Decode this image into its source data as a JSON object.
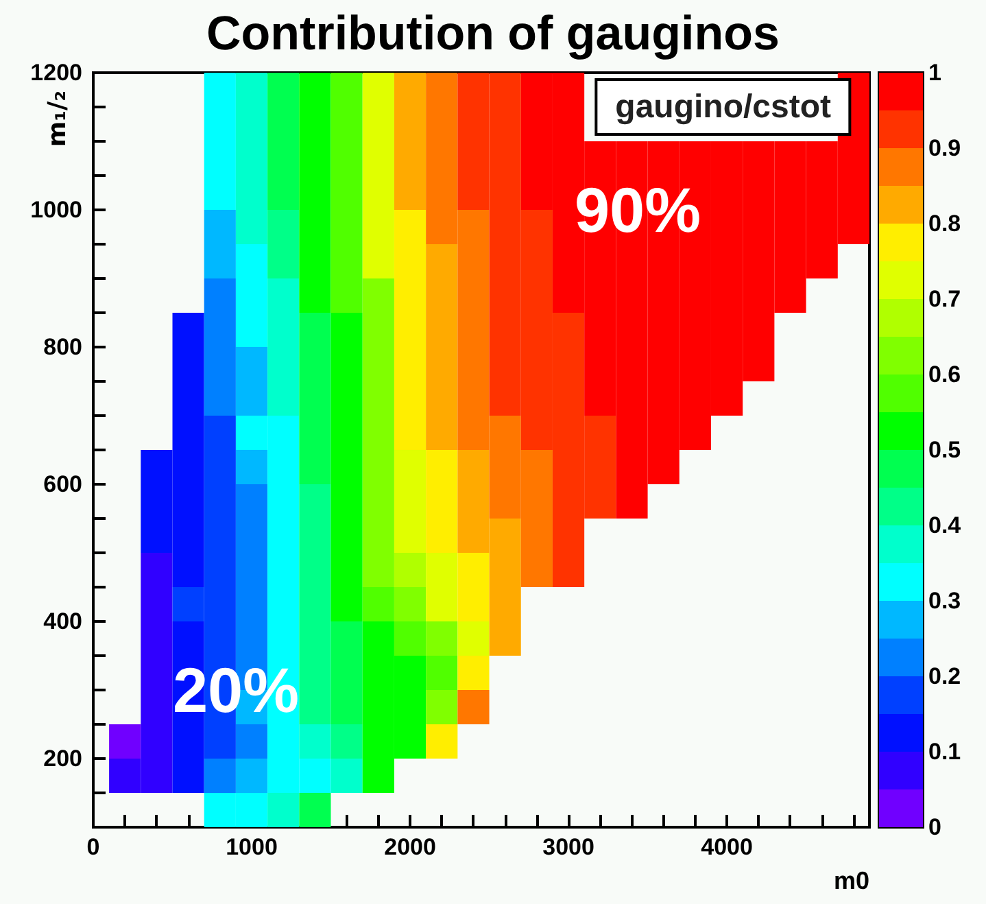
{
  "chart_data": {
    "type": "heatmap",
    "title": "Contribution of gauginos",
    "xlabel": "m0",
    "ylabel": "m₁/₂",
    "annotations": [
      "gaugino/cstot",
      "90%",
      "20%"
    ],
    "x": [
      200,
      400,
      600,
      800,
      1000,
      1200,
      1400,
      1600,
      1800,
      2000,
      2200,
      2400,
      2600,
      2800,
      3000,
      3200,
      3400,
      3600,
      3800,
      4000,
      4200,
      4400,
      4600,
      4800
    ],
    "xlim": [
      0,
      4900
    ],
    "xticks": [
      0,
      {
        "value": 200,
        "label": null
      },
      {
        "value": 400,
        "label": null
      },
      {
        "value": 600,
        "label": null
      },
      {
        "value": 800,
        "label": null
      },
      1000,
      {
        "value": 1200,
        "label": null
      },
      {
        "value": 1400,
        "label": null
      },
      {
        "value": 1600,
        "label": null
      },
      {
        "value": 1800,
        "label": null
      },
      2000,
      {
        "value": 2200,
        "label": null
      },
      {
        "value": 2400,
        "label": null
      },
      {
        "value": 2600,
        "label": null
      },
      {
        "value": 2800,
        "label": null
      },
      3000,
      {
        "value": 3200,
        "label": null
      },
      {
        "value": 3400,
        "label": null
      },
      {
        "value": 3600,
        "label": null
      },
      {
        "value": 3800,
        "label": null
      },
      4000,
      {
        "value": 4200,
        "label": null
      },
      {
        "value": 4400,
        "label": null
      },
      {
        "value": 4600,
        "label": null
      },
      {
        "value": 4800,
        "label": null
      }
    ],
    "ylim": [
      100,
      1200
    ],
    "yticks": [
      {
        "value": 100,
        "label": null
      },
      {
        "value": 150,
        "label": null
      },
      200,
      {
        "value": 250,
        "label": null
      },
      {
        "value": 300,
        "label": null
      },
      {
        "value": 350,
        "label": null
      },
      400,
      {
        "value": 450,
        "label": null
      },
      {
        "value": 500,
        "label": null
      },
      {
        "value": 550,
        "label": null
      },
      600,
      {
        "value": 650,
        "label": null
      },
      {
        "value": 700,
        "label": null
      },
      {
        "value": 750,
        "label": null
      },
      800,
      {
        "value": 850,
        "label": null
      },
      {
        "value": 900,
        "label": null
      },
      {
        "value": 950,
        "label": null
      },
      1000,
      {
        "value": 1050,
        "label": null
      },
      {
        "value": 1100,
        "label": null
      },
      {
        "value": 1150,
        "label": null
      },
      1200
    ],
    "clim": [
      0,
      1
    ],
    "cticks": [
      0,
      0.1,
      0.2,
      0.3,
      0.4,
      0.5,
      0.6,
      0.7,
      0.8,
      0.9,
      1
    ],
    "cells": [
      [
        null,
        null,
        null,
        0.325,
        0.375,
        0.475,
        0.525,
        0.575,
        0.725,
        0.825,
        0.875,
        0.925,
        0.925,
        0.975,
        0.975,
        null,
        null,
        null,
        null,
        null,
        null,
        null,
        null,
        0.975
      ],
      [
        null,
        null,
        null,
        0.325,
        0.375,
        0.475,
        0.525,
        0.575,
        0.725,
        0.825,
        0.875,
        0.925,
        0.925,
        0.975,
        0.975,
        null,
        null,
        null,
        null,
        null,
        null,
        null,
        null,
        0.975
      ],
      [
        null,
        null,
        null,
        0.325,
        0.375,
        0.475,
        0.525,
        0.575,
        0.725,
        0.825,
        0.875,
        0.925,
        0.925,
        0.975,
        0.975,
        0.975,
        0.975,
        0.975,
        0.975,
        0.975,
        0.975,
        0.975,
        0.975,
        0.975
      ],
      [
        null,
        null,
        null,
        0.325,
        0.375,
        0.475,
        0.525,
        0.575,
        0.725,
        0.825,
        0.875,
        0.925,
        0.925,
        0.975,
        0.975,
        0.975,
        0.975,
        0.975,
        0.975,
        0.975,
        0.975,
        0.975,
        0.975,
        0.975
      ],
      [
        null,
        null,
        null,
        0.275,
        0.375,
        0.425,
        0.525,
        0.575,
        0.725,
        0.775,
        0.875,
        0.875,
        0.925,
        0.925,
        0.975,
        0.975,
        0.975,
        0.975,
        0.975,
        0.975,
        0.975,
        0.975,
        0.975,
        0.975
      ],
      [
        null,
        null,
        null,
        0.275,
        0.325,
        0.425,
        0.525,
        0.575,
        0.725,
        0.775,
        0.825,
        0.875,
        0.925,
        0.925,
        0.975,
        0.975,
        0.975,
        0.975,
        0.975,
        0.975,
        0.975,
        0.975,
        0.975,
        null
      ],
      [
        null,
        null,
        null,
        0.225,
        0.325,
        0.375,
        0.525,
        0.575,
        0.625,
        0.775,
        0.825,
        0.875,
        0.925,
        0.925,
        0.975,
        0.975,
        0.975,
        0.975,
        0.975,
        0.975,
        0.975,
        0.975,
        null,
        null
      ],
      [
        null,
        null,
        0.125,
        0.225,
        0.325,
        0.375,
        0.475,
        0.525,
        0.625,
        0.775,
        0.825,
        0.875,
        0.925,
        0.925,
        0.925,
        0.975,
        0.975,
        0.975,
        0.975,
        0.975,
        0.975,
        null,
        null,
        null
      ],
      [
        null,
        null,
        0.125,
        0.225,
        0.275,
        0.375,
        0.475,
        0.525,
        0.625,
        0.775,
        0.825,
        0.875,
        0.925,
        0.925,
        0.925,
        0.975,
        0.975,
        0.975,
        0.975,
        0.975,
        0.975,
        null,
        null,
        null
      ],
      [
        null,
        null,
        0.125,
        0.225,
        0.275,
        0.375,
        0.475,
        0.525,
        0.625,
        0.775,
        0.825,
        0.875,
        0.925,
        0.925,
        0.925,
        0.975,
        0.975,
        0.975,
        0.975,
        0.975,
        null,
        null,
        null,
        null
      ],
      [
        null,
        null,
        0.125,
        0.175,
        0.325,
        0.325,
        0.475,
        0.525,
        0.625,
        0.775,
        0.825,
        0.875,
        0.875,
        0.925,
        0.925,
        0.925,
        0.975,
        0.975,
        0.975,
        null,
        null,
        null,
        null,
        null
      ],
      [
        null,
        0.125,
        0.125,
        0.175,
        0.275,
        0.325,
        0.475,
        0.525,
        0.625,
        0.725,
        0.775,
        0.825,
        0.875,
        0.875,
        0.925,
        0.925,
        0.975,
        0.975,
        null,
        null,
        null,
        null,
        null,
        null
      ],
      [
        null,
        0.125,
        0.125,
        0.175,
        0.225,
        0.325,
        0.425,
        0.525,
        0.625,
        0.725,
        0.775,
        0.825,
        0.875,
        0.875,
        0.925,
        0.925,
        0.975,
        null,
        null,
        null,
        null,
        null,
        null,
        null
      ],
      [
        null,
        0.125,
        0.125,
        0.175,
        0.225,
        0.325,
        0.425,
        0.525,
        0.625,
        0.725,
        0.775,
        0.825,
        0.825,
        0.875,
        0.925,
        null,
        null,
        null,
        null,
        null,
        null,
        null,
        null,
        null
      ],
      [
        null,
        0.075,
        0.125,
        0.175,
        0.225,
        0.325,
        0.425,
        0.525,
        0.625,
        0.675,
        0.725,
        0.775,
        0.825,
        0.875,
        0.925,
        null,
        null,
        null,
        null,
        null,
        null,
        null,
        null,
        null
      ],
      [
        null,
        0.075,
        0.175,
        0.175,
        0.225,
        0.325,
        0.425,
        0.525,
        0.575,
        0.625,
        0.725,
        0.775,
        0.825,
        null,
        null,
        null,
        null,
        null,
        null,
        null,
        null,
        null,
        null,
        null
      ],
      [
        null,
        0.075,
        0.125,
        0.175,
        0.225,
        0.325,
        0.425,
        0.475,
        0.525,
        0.575,
        0.625,
        0.725,
        0.825,
        null,
        null,
        null,
        null,
        null,
        null,
        null,
        null,
        null,
        null,
        null
      ],
      [
        null,
        0.075,
        0.125,
        0.175,
        0.225,
        0.325,
        0.425,
        0.475,
        0.525,
        0.525,
        0.575,
        0.775,
        null,
        null,
        null,
        null,
        null,
        null,
        null,
        null,
        null,
        null,
        null,
        null
      ],
      [
        null,
        0.075,
        0.125,
        0.175,
        0.275,
        0.325,
        0.425,
        0.475,
        0.525,
        0.525,
        0.625,
        0.875,
        null,
        null,
        null,
        null,
        null,
        null,
        null,
        null,
        null,
        null,
        null,
        null
      ],
      [
        0.025,
        0.075,
        0.125,
        0.175,
        0.225,
        0.325,
        0.375,
        0.425,
        0.525,
        0.525,
        0.775,
        null,
        null,
        null,
        null,
        null,
        null,
        null,
        null,
        null,
        null,
        null,
        null,
        null
      ],
      [
        0.075,
        0.075,
        0.125,
        0.225,
        0.275,
        0.325,
        0.325,
        0.375,
        0.525,
        null,
        null,
        null,
        null,
        null,
        null,
        null,
        null,
        null,
        null,
        null,
        null,
        null,
        null,
        null
      ],
      [
        null,
        null,
        null,
        0.325,
        0.325,
        0.375,
        0.475,
        null,
        null,
        null,
        null,
        null,
        null,
        null,
        null,
        null,
        null,
        null,
        null,
        null,
        null,
        null,
        null,
        null
      ]
    ]
  }
}
